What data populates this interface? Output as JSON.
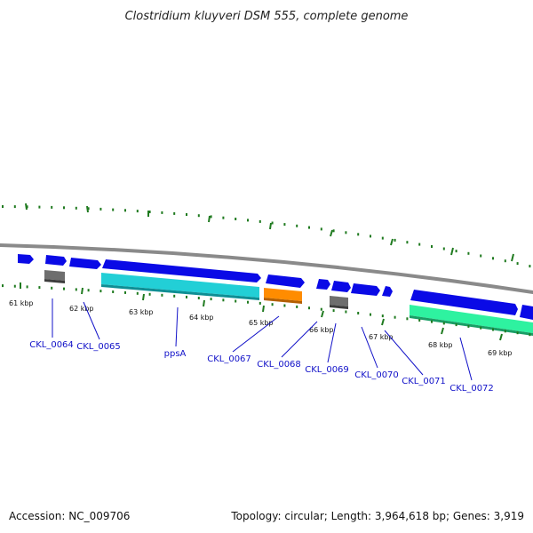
{
  "title": "Clostridium kluyveri DSM 555, complete genome",
  "footer": {
    "accession": "Accession: NC_009706",
    "stats": "Topology: circular; Length: 3,964,618 bp; Genes: 3,919"
  },
  "colors": {
    "backbone": "#8a8a8a",
    "tick": "#1f7a1f",
    "cds": "#0a0ae6",
    "gene_label": "#1010c8",
    "cyan_feature": "#22cfd6",
    "orange_feature": "#ff8c00",
    "gray_feature": "#6e6e6e",
    "green_feature": "#2ef2a0"
  },
  "scale_labels": [
    "61 kbp",
    "62 kbp",
    "63 kbp",
    "64 kbp",
    "65 kbp",
    "66 kbp",
    "67 kbp",
    "68 kbp",
    "69 kbp"
  ],
  "gene_labels": [
    "CKL_0064",
    "CKL_0065",
    "ppsA",
    "CKL_0067",
    "CKL_0068",
    "CKL_0069",
    "CKL_0070",
    "CKL_0071",
    "CKL_0072"
  ]
}
